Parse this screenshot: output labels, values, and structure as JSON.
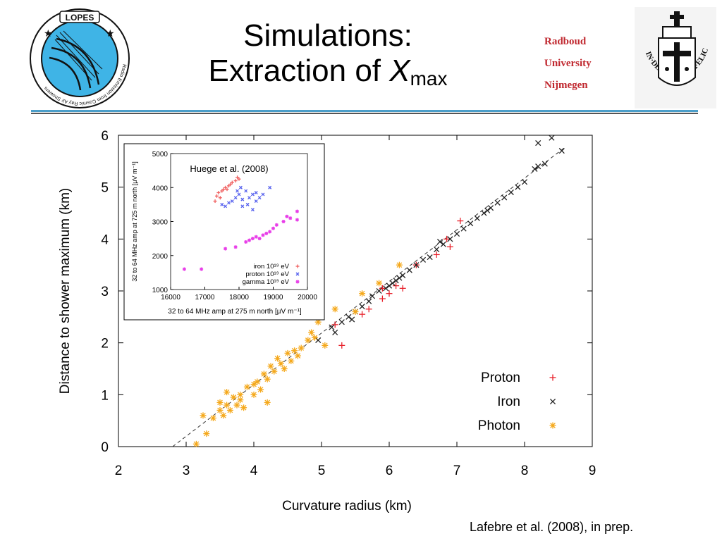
{
  "header": {
    "title_line1": "Simulations:",
    "title_line2_prefix": "Extraction of ",
    "title_symbol": "X",
    "title_subscript": "max",
    "university": [
      "Radboud",
      "University",
      "Nijmegen"
    ]
  },
  "logos": {
    "lopes_name": "LOPES",
    "lopes_ring_text": "Radio Emission from Cosmic Ray Air Showers",
    "radboud_motto": "IN·DEI·NOMINE·FELICITER"
  },
  "credit": "Lafebre et al. (2008), in prep.",
  "colors": {
    "proton": "#e8202a",
    "iron": "#202020",
    "photon": "#f5a81a",
    "rule_blue": "#4b9ec9",
    "inset_iron": "#f06060",
    "inset_proton": "#5560ee",
    "inset_gamma": "#e83ee8"
  },
  "chart_data": [
    {
      "type": "scatter",
      "xlabel": "Curvature radius (km)",
      "ylabel": "Distance to shower maximum (km)",
      "xlim": [
        2,
        9
      ],
      "ylim": [
        0,
        6
      ],
      "xticks": [
        2,
        3,
        4,
        5,
        6,
        7,
        8,
        9
      ],
      "yticks": [
        0,
        1,
        2,
        3,
        4,
        5,
        6
      ],
      "legend": {
        "placement": "bottom-right",
        "entries": [
          "Proton",
          "Iron",
          "Photon"
        ]
      },
      "fit_line": {
        "x": [
          2.8,
          8.6
        ],
        "y": [
          0.0,
          5.77
        ]
      },
      "series": [
        {
          "name": "Proton",
          "marker": "plus",
          "points": [
            [
              5.3,
              1.95
            ],
            [
              5.2,
              2.35
            ],
            [
              5.6,
              2.55
            ],
            [
              5.7,
              2.65
            ],
            [
              5.9,
              3.05
            ],
            [
              6.0,
              2.95
            ],
            [
              6.1,
              3.1
            ],
            [
              6.2,
              3.05
            ],
            [
              6.4,
              3.5
            ],
            [
              6.7,
              3.7
            ],
            [
              6.9,
              3.85
            ],
            [
              7.05,
              4.35
            ],
            [
              6.85,
              4.0
            ],
            [
              5.9,
              2.85
            ]
          ]
        },
        {
          "name": "Iron",
          "marker": "x",
          "points": [
            [
              4.95,
              2.05
            ],
            [
              5.2,
              2.2
            ],
            [
              5.3,
              2.4
            ],
            [
              5.4,
              2.5
            ],
            [
              5.5,
              2.6
            ],
            [
              5.6,
              2.7
            ],
            [
              5.7,
              2.8
            ],
            [
              5.75,
              2.9
            ],
            [
              5.85,
              3.0
            ],
            [
              5.95,
              3.05
            ],
            [
              6.0,
              3.1
            ],
            [
              6.05,
              3.15
            ],
            [
              6.1,
              3.2
            ],
            [
              6.15,
              3.25
            ],
            [
              6.2,
              3.3
            ],
            [
              6.3,
              3.4
            ],
            [
              6.4,
              3.5
            ],
            [
              6.5,
              3.6
            ],
            [
              6.6,
              3.65
            ],
            [
              6.7,
              3.8
            ],
            [
              6.8,
              3.9
            ],
            [
              6.9,
              4.0
            ],
            [
              7.0,
              4.1
            ],
            [
              7.1,
              4.2
            ],
            [
              7.2,
              4.3
            ],
            [
              7.3,
              4.4
            ],
            [
              7.4,
              4.5
            ],
            [
              7.5,
              4.6
            ],
            [
              7.6,
              4.7
            ],
            [
              7.7,
              4.8
            ],
            [
              7.8,
              4.9
            ],
            [
              7.9,
              5.0
            ],
            [
              8.0,
              5.1
            ],
            [
              8.15,
              5.35
            ],
            [
              8.2,
              5.4
            ],
            [
              8.3,
              5.45
            ],
            [
              8.2,
              5.85
            ],
            [
              8.4,
              5.95
            ],
            [
              8.55,
              5.7
            ],
            [
              5.15,
              2.3
            ],
            [
              5.45,
              2.45
            ],
            [
              6.75,
              3.95
            ],
            [
              7.45,
              4.55
            ]
          ]
        },
        {
          "name": "Photon",
          "marker": "asterisk",
          "points": [
            [
              3.15,
              0.05
            ],
            [
              3.3,
              0.25
            ],
            [
              3.25,
              0.6
            ],
            [
              3.4,
              0.55
            ],
            [
              3.5,
              0.7
            ],
            [
              3.55,
              0.6
            ],
            [
              3.6,
              0.8
            ],
            [
              3.6,
              1.05
            ],
            [
              3.75,
              0.8
            ],
            [
              3.8,
              0.9
            ],
            [
              3.8,
              1.0
            ],
            [
              3.85,
              0.75
            ],
            [
              3.9,
              1.15
            ],
            [
              4.0,
              1.2
            ],
            [
              4.0,
              1.0
            ],
            [
              4.1,
              1.1
            ],
            [
              4.15,
              1.4
            ],
            [
              4.2,
              1.3
            ],
            [
              4.25,
              1.55
            ],
            [
              4.2,
              0.85
            ],
            [
              4.3,
              1.45
            ],
            [
              4.35,
              1.7
            ],
            [
              4.4,
              1.6
            ],
            [
              4.45,
              1.5
            ],
            [
              4.5,
              1.8
            ],
            [
              4.55,
              1.65
            ],
            [
              4.6,
              1.85
            ],
            [
              4.65,
              1.75
            ],
            [
              4.7,
              1.9
            ],
            [
              4.8,
              2.05
            ],
            [
              4.85,
              2.2
            ],
            [
              4.9,
              2.1
            ],
            [
              4.95,
              2.4
            ],
            [
              5.05,
              1.95
            ],
            [
              5.2,
              2.65
            ],
            [
              5.5,
              2.6
            ],
            [
              5.6,
              2.95
            ],
            [
              5.85,
              3.15
            ],
            [
              6.15,
              3.5
            ],
            [
              3.5,
              0.85
            ],
            [
              3.7,
              0.95
            ],
            [
              4.05,
              1.25
            ],
            [
              3.65,
              0.7
            ]
          ]
        }
      ]
    },
    {
      "type": "scatter",
      "title": "Huege et al. (2008)",
      "xlabel": "32 to 64 MHz amp at 275 m north [μV m⁻¹]",
      "ylabel": "32 to 64 MHz amp at 725 m north [μV m⁻¹]",
      "xlim": [
        16000,
        20000
      ],
      "ylim": [
        1000,
        5000
      ],
      "xticks": [
        16000,
        17000,
        18000,
        19000,
        20000
      ],
      "yticks": [
        1000,
        2000,
        3000,
        4000,
        5000
      ],
      "legend": {
        "placement": "bottom-right",
        "entries": [
          "iron 10¹⁹ eV",
          "proton 10¹⁹ eV",
          "gamma 10¹⁹ eV"
        ]
      },
      "series": [
        {
          "name": "iron 10¹⁹ eV",
          "marker": "plus",
          "points": [
            [
              17300,
              3600
            ],
            [
              17350,
              3750
            ],
            [
              17400,
              3850
            ],
            [
              17500,
              3900
            ],
            [
              17600,
              4000
            ],
            [
              17700,
              4050
            ],
            [
              17800,
              4150
            ],
            [
              17900,
              4200
            ],
            [
              18000,
              4250
            ],
            [
              17450,
              3700
            ],
            [
              17550,
              3950
            ],
            [
              17750,
              4100
            ],
            [
              17950,
              4300
            ],
            [
              17650,
              3950
            ]
          ]
        },
        {
          "name": "proton 10¹⁹ eV",
          "marker": "x",
          "points": [
            [
              17500,
              3500
            ],
            [
              17600,
              3450
            ],
            [
              17800,
              3600
            ],
            [
              17900,
              3700
            ],
            [
              18000,
              3800
            ],
            [
              18100,
              3650
            ],
            [
              18200,
              3900
            ],
            [
              18300,
              3700
            ],
            [
              18400,
              3800
            ],
            [
              18500,
              3600
            ],
            [
              18600,
              3700
            ],
            [
              18700,
              3800
            ],
            [
              18900,
              4000
            ],
            [
              18100,
              3450
            ],
            [
              17700,
              3550
            ],
            [
              18250,
              3500
            ],
            [
              18400,
              3350
            ],
            [
              17950,
              3900
            ],
            [
              18050,
              4000
            ],
            [
              18500,
              3850
            ]
          ]
        },
        {
          "name": "gamma 10¹⁹ eV",
          "marker": "asterisk",
          "points": [
            [
              16400,
              1600
            ],
            [
              16900,
              1600
            ],
            [
              17600,
              2200
            ],
            [
              17900,
              2250
            ],
            [
              18200,
              2400
            ],
            [
              18400,
              2500
            ],
            [
              18500,
              2550
            ],
            [
              18700,
              2600
            ],
            [
              18900,
              2700
            ],
            [
              19100,
              2900
            ],
            [
              19300,
              3000
            ],
            [
              19500,
              3100
            ],
            [
              19700,
              3300
            ],
            [
              19700,
              3050
            ],
            [
              18600,
              2500
            ],
            [
              18300,
              2450
            ],
            [
              19000,
              2800
            ],
            [
              19400,
              3150
            ],
            [
              18800,
              2650
            ]
          ]
        }
      ]
    }
  ]
}
